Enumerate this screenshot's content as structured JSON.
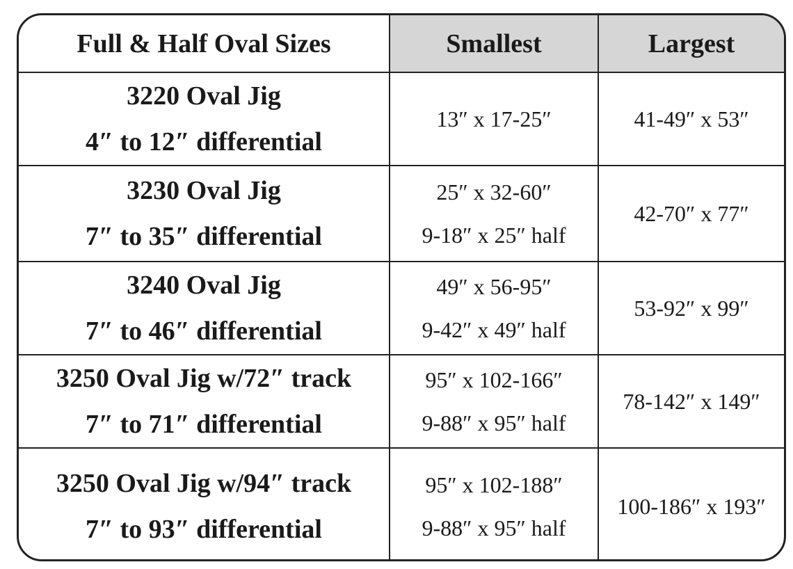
{
  "table": {
    "header": [
      "Full & Half Oval Sizes",
      "Smallest",
      "Largest"
    ],
    "rows": [
      {
        "name": [
          "3220 Oval Jig",
          "4″ to 12″ differential"
        ],
        "smallest": [
          "13″ x 17-25″"
        ],
        "largest": [
          "41-49″ x 53″"
        ]
      },
      {
        "name": [
          "3230 Oval Jig",
          "7″ to 35″ differential"
        ],
        "smallest": [
          "25″ x 32-60″",
          "9-18″ x 25″ half"
        ],
        "largest": [
          "42-70″ x 77″"
        ]
      },
      {
        "name": [
          "3240 Oval Jig",
          "7″ to 46″ differential"
        ],
        "smallest": [
          "49″ x 56-95″",
          "9-42″ x 49″ half"
        ],
        "largest": [
          "53-92″ x 99″"
        ]
      },
      {
        "name": [
          "3250 Oval Jig w/72″ track",
          "7″ to 71″ differential"
        ],
        "smallest": [
          "95″ x 102-166″",
          "9-88″ x 95″ half"
        ],
        "largest": [
          "78-142″ x 149″"
        ]
      },
      {
        "name": [
          "3250 Oval Jig w/94″ track",
          "7″ to 93″ differential"
        ],
        "smallest": [
          "95″ x 102-188″",
          "9-88″ x 95″ half"
        ],
        "largest": [
          "100-186″ x 193″"
        ]
      }
    ]
  }
}
